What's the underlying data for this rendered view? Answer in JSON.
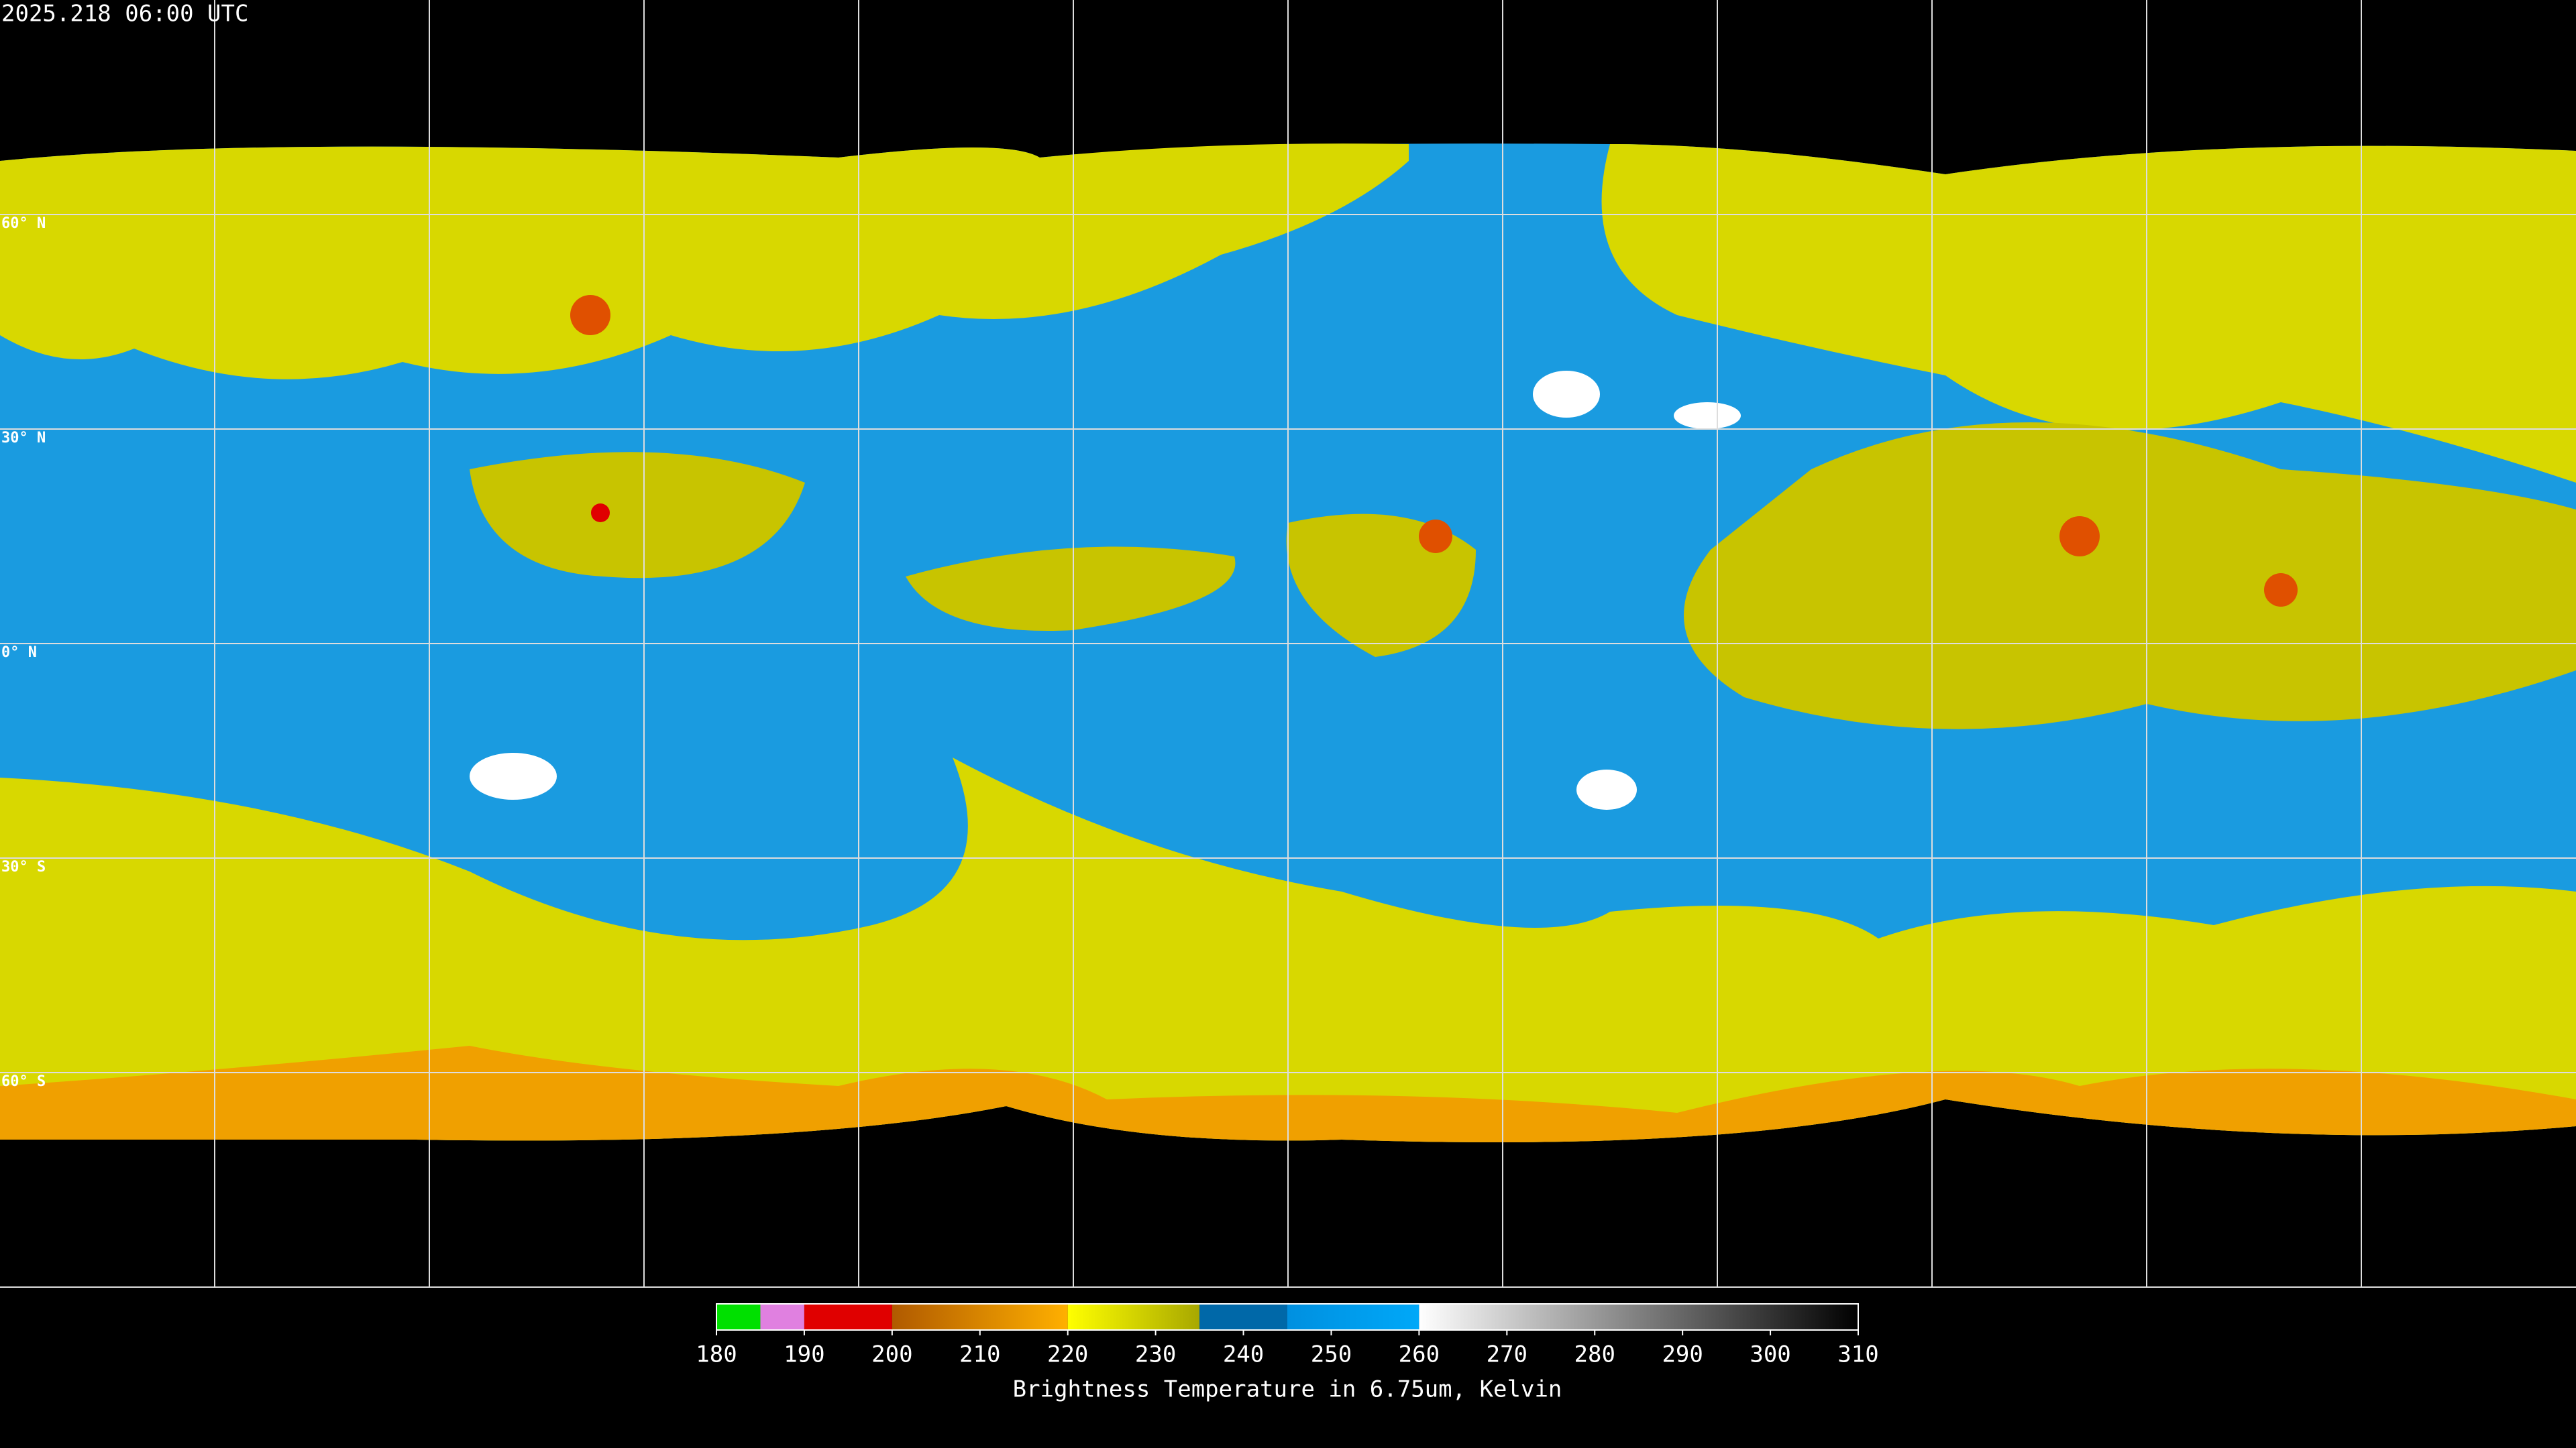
{
  "timestamp": "2025.218 06:00 UTC",
  "lat_labels": [
    "60° N",
    "30° N",
    "0° N",
    "30° S",
    "60° S"
  ],
  "colorbar": {
    "lim": [
      180,
      310
    ],
    "ticks": [
      180,
      190,
      200,
      210,
      220,
      230,
      240,
      250,
      260,
      270,
      280,
      290,
      300,
      310
    ],
    "label": "Brightness Temperature in 6.75um, Kelvin",
    "segments": [
      {
        "from": 180,
        "to": 185,
        "colors": [
          "#00e000",
          "#00e000"
        ]
      },
      {
        "from": 185,
        "to": 190,
        "colors": [
          "#e080e0",
          "#e080e0"
        ]
      },
      {
        "from": 190,
        "to": 200,
        "colors": [
          "#e00000",
          "#e00000"
        ]
      },
      {
        "from": 200,
        "to": 220,
        "colors": [
          "#b05a00",
          "#ffb000"
        ]
      },
      {
        "from": 220,
        "to": 235,
        "colors": [
          "#ffff00",
          "#a8a800"
        ]
      },
      {
        "from": 235,
        "to": 245,
        "colors": [
          "#0068a8",
          "#0068a8"
        ]
      },
      {
        "from": 245,
        "to": 260,
        "colors": [
          "#0090e0",
          "#00a8f8"
        ]
      },
      {
        "from": 260,
        "to": 310,
        "colors": [
          "#ffffff",
          "#000000"
        ]
      }
    ]
  }
}
